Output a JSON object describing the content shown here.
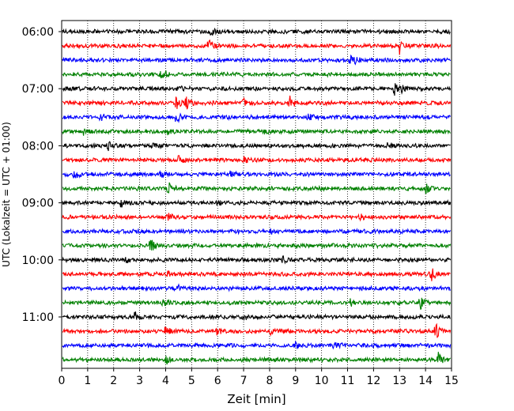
{
  "chart_data": {
    "type": "line",
    "title": "",
    "xlabel": "Zeit  [min]",
    "ylabel": "UTC (Lokalzeit = UTC + 01:00)",
    "xlim": [
      0,
      15
    ],
    "x_ticks": [
      0,
      1,
      2,
      3,
      4,
      5,
      6,
      7,
      8,
      9,
      10,
      11,
      12,
      13,
      14,
      15
    ],
    "y_tick_labels": [
      "06:00",
      "07:00",
      "08:00",
      "09:00",
      "10:00",
      "11:00"
    ],
    "grid": "vertical dotted at each minute",
    "trace_colors": [
      "#000000",
      "#ff0000",
      "#0000ff",
      "#008000"
    ],
    "traces": [
      {
        "start": "06:00",
        "events": [
          {
            "t": 5.7,
            "a": 0.6
          }
        ]
      },
      {
        "start": "06:15",
        "events": [
          {
            "t": 5.65,
            "a": 0.9
          },
          {
            "t": 13.0,
            "a": 1.0
          }
        ]
      },
      {
        "start": "06:30",
        "events": [
          {
            "t": 11.1,
            "a": 0.5
          },
          {
            "t": 11.3,
            "a": 0.45
          }
        ]
      },
      {
        "start": "06:45",
        "events": [
          {
            "t": 3.8,
            "a": 0.5
          },
          {
            "t": 4.0,
            "a": 0.4
          }
        ]
      },
      {
        "start": "07:00",
        "events": [
          {
            "t": 4.5,
            "a": 0.6
          },
          {
            "t": 12.8,
            "a": 0.8
          },
          {
            "t": 13.1,
            "a": 0.5
          }
        ]
      },
      {
        "start": "07:15",
        "events": [
          {
            "t": 4.4,
            "a": 0.9
          },
          {
            "t": 4.8,
            "a": 0.7
          },
          {
            "t": 7.0,
            "a": 0.5
          },
          {
            "t": 8.8,
            "a": 1.0
          }
        ]
      },
      {
        "start": "07:30",
        "events": [
          {
            "t": 1.5,
            "a": 0.5
          },
          {
            "t": 4.4,
            "a": 0.9
          },
          {
            "t": 9.5,
            "a": 0.4
          }
        ]
      },
      {
        "start": "07:45",
        "events": [
          {
            "t": 0.8,
            "a": 0.5
          },
          {
            "t": 4.1,
            "a": 0.5
          },
          {
            "t": 7.8,
            "a": 0.35
          }
        ]
      },
      {
        "start": "08:00",
        "events": [
          {
            "t": 1.8,
            "a": 0.6
          },
          {
            "t": 3.5,
            "a": 0.4
          },
          {
            "t": 12.5,
            "a": 0.35
          }
        ]
      },
      {
        "start": "08:15",
        "events": [
          {
            "t": 4.5,
            "a": 0.5
          },
          {
            "t": 7.0,
            "a": 0.4
          }
        ]
      },
      {
        "start": "08:30",
        "events": [
          {
            "t": 0.5,
            "a": 0.7
          },
          {
            "t": 3.8,
            "a": 0.5
          },
          {
            "t": 6.5,
            "a": 0.4
          }
        ]
      },
      {
        "start": "08:45",
        "events": [
          {
            "t": 4.1,
            "a": 0.9
          },
          {
            "t": 14.0,
            "a": 0.6
          }
        ]
      },
      {
        "start": "09:00",
        "events": [
          {
            "t": 2.3,
            "a": 0.5
          },
          {
            "t": 6.0,
            "a": 0.35
          }
        ]
      },
      {
        "start": "09:15",
        "events": [
          {
            "t": 4.1,
            "a": 0.5
          },
          {
            "t": 11.5,
            "a": 0.35
          }
        ]
      },
      {
        "start": "09:30",
        "events": [
          {
            "t": 8.0,
            "a": 0.35
          }
        ]
      },
      {
        "start": "09:45",
        "events": [
          {
            "t": 3.4,
            "a": 1.0
          }
        ]
      },
      {
        "start": "10:00",
        "events": [
          {
            "t": 2.5,
            "a": 0.4
          },
          {
            "t": 8.5,
            "a": 0.35
          }
        ]
      },
      {
        "start": "10:15",
        "events": [
          {
            "t": 4.0,
            "a": 0.4
          },
          {
            "t": 14.2,
            "a": 0.9
          }
        ]
      },
      {
        "start": "10:30",
        "events": [
          {
            "t": 4.5,
            "a": 0.35
          }
        ]
      },
      {
        "start": "10:45",
        "events": [
          {
            "t": 3.9,
            "a": 0.5
          },
          {
            "t": 11.1,
            "a": 0.45
          },
          {
            "t": 13.8,
            "a": 1.0
          }
        ]
      },
      {
        "start": "11:00",
        "events": [
          {
            "t": 2.8,
            "a": 0.7
          },
          {
            "t": 7.0,
            "a": 0.35
          }
        ]
      },
      {
        "start": "11:15",
        "events": [
          {
            "t": 4.0,
            "a": 0.6
          },
          {
            "t": 6.0,
            "a": 0.4
          },
          {
            "t": 8.0,
            "a": 0.4
          },
          {
            "t": 14.4,
            "a": 1.0
          }
        ]
      },
      {
        "start": "11:30",
        "events": [
          {
            "t": 9.0,
            "a": 0.3
          },
          {
            "t": 10.5,
            "a": 0.6
          }
        ]
      },
      {
        "start": "11:45",
        "events": [
          {
            "t": 4.0,
            "a": 0.6
          },
          {
            "t": 14.5,
            "a": 1.0
          }
        ]
      }
    ]
  }
}
